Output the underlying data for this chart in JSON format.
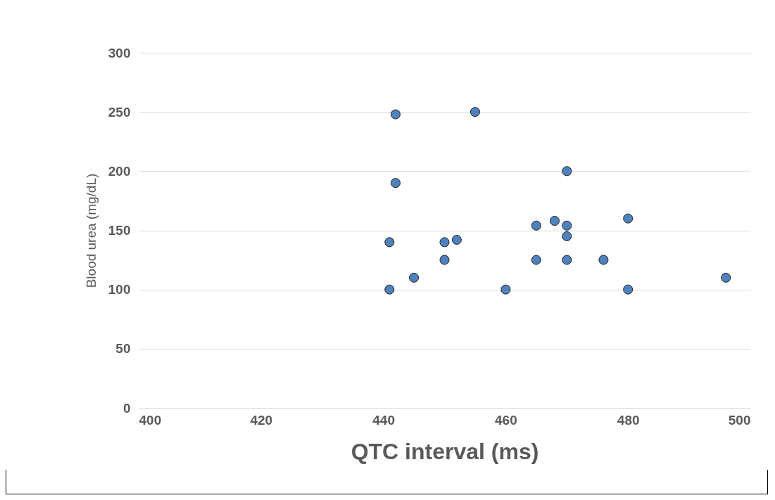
{
  "chart_data": {
    "type": "scatter",
    "xlabel": "QTC interval (ms)",
    "ylabel": "Blood urea (mg/dL)",
    "x": [
      441,
      441,
      442,
      442,
      445,
      450,
      450,
      452,
      455,
      460,
      465,
      465,
      468,
      470,
      470,
      470,
      470,
      476,
      480,
      480,
      496
    ],
    "series": [
      {
        "color": "#4f81bd",
        "values": [
          100,
          140,
          248,
          190,
          110,
          140,
          125,
          142,
          250,
          100,
          154,
          125,
          158,
          200,
          154,
          145,
          125,
          125,
          160,
          100,
          110
        ]
      }
    ],
    "xlim": [
      400,
      500
    ],
    "xticks": [
      400,
      420,
      440,
      460,
      480,
      500
    ],
    "ylim": [
      0,
      300
    ],
    "yticks": [
      0,
      50,
      100,
      150,
      200,
      250,
      300
    ],
    "grid": "y",
    "marker": "circle",
    "legend": false
  }
}
